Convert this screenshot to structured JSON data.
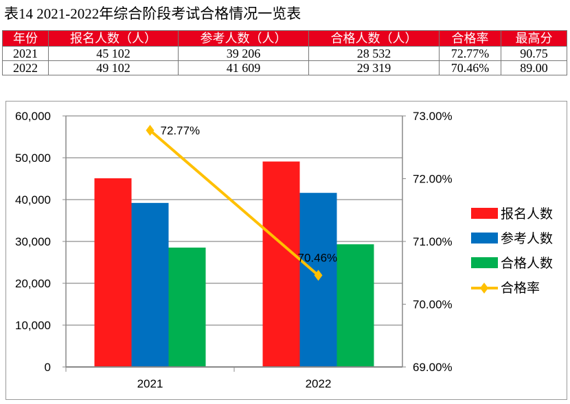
{
  "title": "表14  2021-2022年综合阶段考试合格情况一览表",
  "table": {
    "headers": [
      "年份",
      "报名人数（人）",
      "参考人数（人）",
      "合格人数（人）",
      "合格率",
      "最高分"
    ],
    "rows": [
      [
        "2021",
        "45 102",
        "39 206",
        "28 532",
        "72.77%",
        "90.75"
      ],
      [
        "2022",
        "49 102",
        "41 609",
        "29 319",
        "70.46%",
        "89.00"
      ]
    ],
    "header_color": "#e8001c"
  },
  "chart_data": {
    "type": "bar",
    "categories": [
      "2021",
      "2022"
    ],
    "series": [
      {
        "name": "报名人数",
        "type": "bar",
        "axis": "left",
        "color": "#ff1a1a",
        "values": [
          45102,
          49102
        ]
      },
      {
        "name": "参考人数",
        "type": "bar",
        "axis": "left",
        "color": "#0070c0",
        "values": [
          39206,
          41609
        ]
      },
      {
        "name": "合格人数",
        "type": "bar",
        "axis": "left",
        "color": "#00b050",
        "values": [
          28532,
          29319
        ]
      },
      {
        "name": "合格率",
        "type": "line",
        "axis": "right",
        "color": "#ffc000",
        "marker": "diamond",
        "values": [
          72.77,
          70.46
        ],
        "labels": [
          "72.77%",
          "70.46%"
        ]
      }
    ],
    "left_axis": {
      "range": [
        0,
        60000
      ],
      "ticks": [
        "0",
        "10,000",
        "20,000",
        "30,000",
        "40,000",
        "50,000",
        "60,000"
      ]
    },
    "right_axis": {
      "range": [
        69,
        73
      ],
      "ticks": [
        "69.00%",
        "70.00%",
        "71.00%",
        "72.00%",
        "73.00%"
      ]
    },
    "grid": true,
    "legend": "right"
  }
}
